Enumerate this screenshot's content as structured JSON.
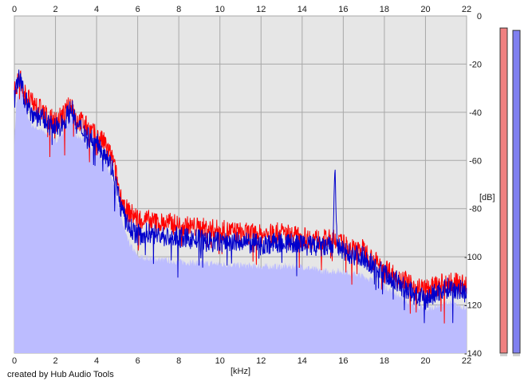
{
  "chart_data": {
    "type": "area",
    "xlabel": "[kHz]",
    "ylabel": "[dB]",
    "xlim": [
      0,
      22
    ],
    "ylim": [
      -140,
      0
    ],
    "x_ticks": [
      "0",
      "2",
      "4",
      "6",
      "8",
      "10",
      "12",
      "14",
      "16",
      "18",
      "20",
      "22"
    ],
    "y_ticks": [
      "0",
      "-20",
      "-40",
      "-60",
      "-80",
      "-100",
      "-120",
      "-140"
    ],
    "grid": true,
    "series": [
      {
        "color": "#ff0000",
        "x": [
          0,
          0.1,
          0.2,
          0.3,
          0.5,
          0.8,
          1.2,
          1.6,
          2.0,
          2.4,
          2.8,
          3.0,
          3.3,
          3.6,
          4.0,
          4.4,
          4.8,
          5.0,
          5.2,
          5.5,
          6.0,
          6.5,
          7.0,
          7.5,
          8.0,
          9.0,
          10.0,
          11.0,
          12.0,
          13.0,
          14.0,
          15.0,
          15.6,
          15.7,
          16.0,
          16.5,
          17.0,
          17.5,
          18.0,
          18.5,
          19.0,
          19.5,
          20.0,
          20.5,
          21.0,
          21.5,
          22.0
        ],
        "y": [
          -32,
          -29,
          -26,
          -26,
          -32,
          -36,
          -38,
          -42,
          -44,
          -41,
          -36,
          -43,
          -44,
          -47,
          -50,
          -53,
          -60,
          -68,
          -76,
          -81,
          -84,
          -85,
          -86,
          -86,
          -87,
          -88,
          -89,
          -90,
          -91,
          -90,
          -92,
          -93,
          -93,
          -94,
          -95,
          -97,
          -97,
          -102,
          -104,
          -108,
          -110,
          -112,
          -114,
          -112,
          -111,
          -111,
          -112
        ]
      },
      {
        "color": "#0000cc",
        "x": [
          0,
          0.1,
          0.2,
          0.3,
          0.5,
          0.8,
          1.2,
          1.6,
          2.0,
          2.4,
          2.8,
          3.0,
          3.3,
          3.6,
          4.0,
          4.4,
          4.8,
          5.0,
          5.2,
          5.5,
          6.0,
          6.5,
          7.0,
          7.5,
          8.0,
          9.0,
          10.0,
          11.0,
          12.0,
          13.0,
          14.0,
          15.0,
          15.5,
          15.6,
          15.65,
          15.7,
          16.0,
          16.5,
          17.0,
          17.5,
          18.0,
          18.5,
          19.0,
          19.5,
          20.0,
          20.5,
          21.0,
          21.5,
          22.0
        ],
        "y": [
          -35,
          -30,
          -26,
          -28,
          -34,
          -40,
          -42,
          -44,
          -47,
          -44,
          -38,
          -46,
          -47,
          -50,
          -53,
          -56,
          -64,
          -72,
          -80,
          -87,
          -91,
          -90,
          -91,
          -92,
          -92,
          -93,
          -94,
          -94,
          -95,
          -94,
          -95,
          -96,
          -96,
          -60,
          -80,
          -96,
          -98,
          -99,
          -100,
          -104,
          -107,
          -110,
          -113,
          -116,
          -118,
          -115,
          -113,
          -113,
          -115
        ]
      },
      {
        "color": "#bcbcff",
        "x": [
          0,
          0.1,
          0.3,
          0.5,
          0.8,
          1.2,
          1.6,
          2.0,
          2.4,
          2.8,
          3.0,
          3.3,
          3.6,
          4.0,
          4.4,
          4.8,
          5.0,
          5.2,
          5.5,
          6.0,
          7.0,
          8.0,
          10.0,
          12.0,
          14.0,
          15.0,
          16.0,
          17.0,
          18.0,
          19.0,
          20.0,
          21.0,
          22.0
        ],
        "y": [
          -52,
          -36,
          -30,
          -37,
          -45,
          -47,
          -49,
          -52,
          -48,
          -41,
          -50,
          -51,
          -54,
          -57,
          -60,
          -68,
          -76,
          -84,
          -93,
          -100,
          -101,
          -102,
          -103,
          -104,
          -104,
          -106,
          -106,
          -108,
          -112,
          -118,
          -122,
          -119,
          -121
        ]
      }
    ],
    "level_meters": [
      {
        "color": "#f08080",
        "level_db": -5
      },
      {
        "color": "#8080f0",
        "level_db": -6
      }
    ],
    "footer": "created by Hub Audio Tools"
  }
}
